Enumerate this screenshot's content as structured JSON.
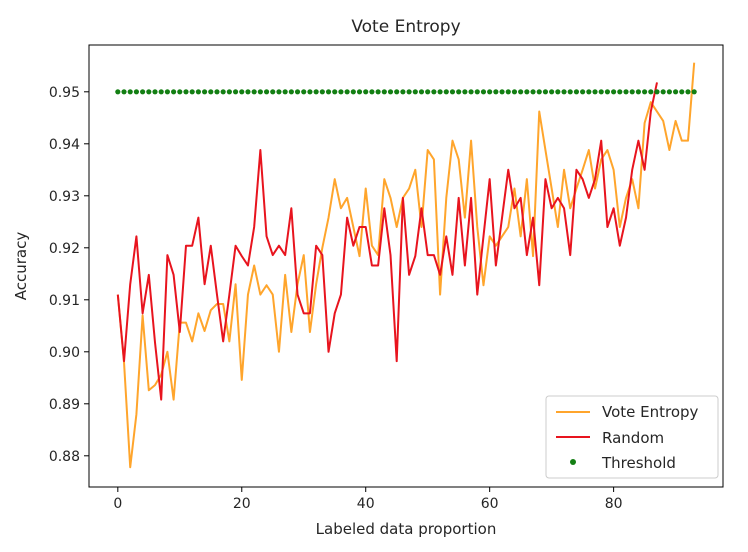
{
  "chart_data": {
    "type": "line",
    "title": "Vote Entropy",
    "xlabel": "Labeled data proportion",
    "ylabel": "Accuracy",
    "xlim": [
      -4.65,
      97.65
    ],
    "ylim": [
      0.874,
      0.959
    ],
    "xticks": [
      0,
      20,
      40,
      60,
      80
    ],
    "yticks": [
      0.88,
      0.89,
      0.9,
      0.91,
      0.92,
      0.93,
      0.94,
      0.95
    ],
    "ytick_labels": [
      "0.88",
      "0.89",
      "0.90",
      "0.91",
      "0.92",
      "0.93",
      "0.94",
      "0.95"
    ],
    "grid": false,
    "legend": {
      "placement": "lower-right"
    },
    "series": [
      {
        "name": "Vote Entropy",
        "kind": "line",
        "color": "#ffa52c",
        "x_start": 0,
        "x_step": 1,
        "values": [
          0.911,
          0.898,
          0.8778,
          0.888,
          0.907,
          0.8926,
          0.8936,
          0.8956,
          0.9,
          0.8908,
          0.9056,
          0.9056,
          0.902,
          0.9074,
          0.904,
          0.908,
          0.9092,
          0.9092,
          0.902,
          0.913,
          0.8946,
          0.911,
          0.9166,
          0.911,
          0.9128,
          0.911,
          0.9,
          0.9148,
          0.9038,
          0.913,
          0.9186,
          0.9038,
          0.913,
          0.92,
          0.9258,
          0.9332,
          0.9276,
          0.9296,
          0.924,
          0.9184,
          0.9314,
          0.9204,
          0.9186,
          0.9332,
          0.9296,
          0.924,
          0.9296,
          0.9314,
          0.935,
          0.924,
          0.9388,
          0.937,
          0.911,
          0.9296,
          0.9406,
          0.937,
          0.9258,
          0.9406,
          0.924,
          0.9128,
          0.9222,
          0.9204,
          0.9222,
          0.924,
          0.9314,
          0.9222,
          0.9332,
          0.9184,
          0.9462,
          0.9388,
          0.9314,
          0.924,
          0.935,
          0.9276,
          0.9314,
          0.935,
          0.9388,
          0.9314,
          0.937,
          0.9388,
          0.935,
          0.924,
          0.9296,
          0.9332,
          0.9276,
          0.944,
          0.948,
          0.9462,
          0.9444,
          0.9388,
          0.9444,
          0.9406,
          0.9406,
          0.9556
        ]
      },
      {
        "name": "Random",
        "kind": "line",
        "color": "#e8141e",
        "x_start": 0,
        "x_step": 1,
        "values": [
          0.911,
          0.8982,
          0.913,
          0.9222,
          0.9074,
          0.9148,
          0.9018,
          0.8908,
          0.9186,
          0.9148,
          0.9038,
          0.9204,
          0.9204,
          0.9258,
          0.913,
          0.9204,
          0.911,
          0.902,
          0.911,
          0.9204,
          0.9184,
          0.9166,
          0.924,
          0.9388,
          0.9222,
          0.9186,
          0.9204,
          0.9186,
          0.9276,
          0.911,
          0.9074,
          0.9074,
          0.9204,
          0.9186,
          0.9,
          0.9074,
          0.911,
          0.9258,
          0.9204,
          0.924,
          0.924,
          0.9166,
          0.9166,
          0.9276,
          0.9186,
          0.8982,
          0.9296,
          0.9148,
          0.9184,
          0.9276,
          0.9186,
          0.9186,
          0.9148,
          0.9222,
          0.9148,
          0.9296,
          0.9166,
          0.9296,
          0.911,
          0.9222,
          0.9332,
          0.9166,
          0.9258,
          0.935,
          0.9276,
          0.9296,
          0.9186,
          0.9258,
          0.9128,
          0.9332,
          0.9276,
          0.9296,
          0.9276,
          0.9186,
          0.935,
          0.9332,
          0.9296,
          0.9332,
          0.9406,
          0.924,
          0.9276,
          0.9204,
          0.9258,
          0.935,
          0.9406,
          0.935,
          0.9462,
          0.9518
        ]
      },
      {
        "name": "Threshold",
        "kind": "scatter",
        "color": "#137f13",
        "x_start": 0,
        "x_step": 1,
        "count": 94,
        "value": 0.95
      }
    ]
  }
}
